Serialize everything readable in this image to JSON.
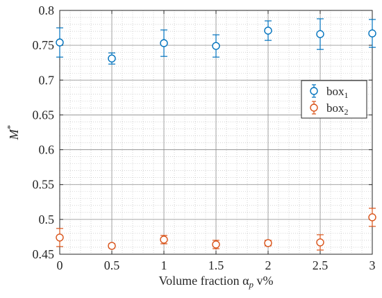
{
  "chart_data": {
    "type": "scatter",
    "title": "",
    "xlabel": {
      "text": "Volume fraction α",
      "sub": "p",
      "suffix": " v%"
    },
    "ylabel": {
      "text": "M",
      "sup": "*"
    },
    "xlim": [
      0,
      3
    ],
    "ylim": [
      0.45,
      0.8
    ],
    "x_ticks": [
      0,
      0.5,
      1,
      1.5,
      2,
      2.5,
      3
    ],
    "x_tick_labels": [
      "0",
      "0.5",
      "1",
      "1.5",
      "2",
      "2.5",
      "3"
    ],
    "y_ticks": [
      0.45,
      0.5,
      0.55,
      0.6,
      0.65,
      0.7,
      0.75,
      0.8
    ],
    "y_tick_labels": [
      "0.45",
      "0.5",
      "0.55",
      "0.6",
      "0.65",
      "0.7",
      "0.75",
      "0.8"
    ],
    "grid": true,
    "minor_grid": true,
    "legend_position": "right",
    "series": [
      {
        "name": "box",
        "name_sub": "1",
        "color": "#0072BD",
        "marker": "open-circle",
        "error_bars": true,
        "x": [
          0,
          0.5,
          1,
          1.5,
          2,
          2.5,
          3
        ],
        "y": [
          0.754,
          0.731,
          0.753,
          0.749,
          0.771,
          0.766,
          0.767
        ],
        "yerr": [
          0.021,
          0.008,
          0.019,
          0.016,
          0.014,
          0.022,
          0.02
        ]
      },
      {
        "name": "box",
        "name_sub": "2",
        "color": "#D95319",
        "marker": "open-circle",
        "error_bars": true,
        "x": [
          0,
          0.5,
          1,
          1.5,
          2,
          2.5,
          3
        ],
        "y": [
          0.474,
          0.462,
          0.471,
          0.464,
          0.466,
          0.467,
          0.503
        ],
        "yerr": [
          0.013,
          0.003,
          0.006,
          0.006,
          0.004,
          0.011,
          0.013
        ]
      }
    ]
  }
}
